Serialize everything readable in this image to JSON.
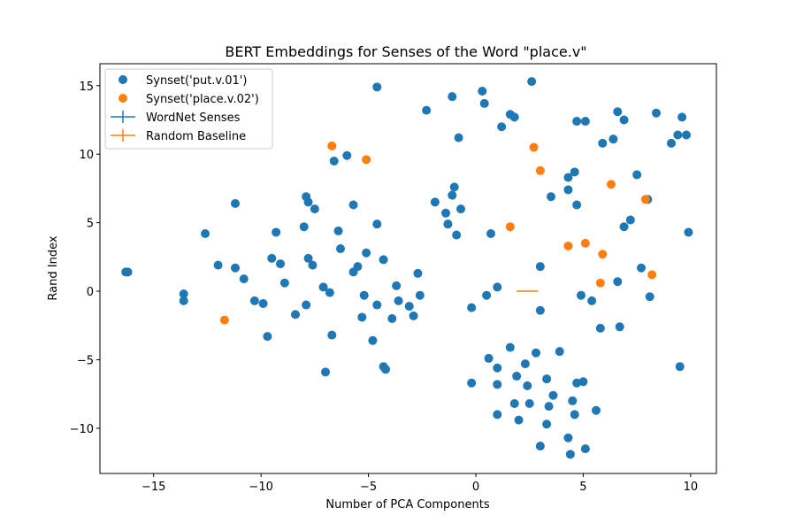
{
  "chart_data": {
    "type": "scatter",
    "title": "BERT Embeddings for Senses of the Word \"place.v\"",
    "xlabel": "Number of PCA Components",
    "ylabel": "Rand Index",
    "xlim": [
      -17.5,
      11.2
    ],
    "ylim": [
      -13.3,
      16.6
    ],
    "xticks": [
      -15,
      -10,
      -5,
      0,
      5,
      10
    ],
    "yticks": [
      -10,
      -5,
      0,
      5,
      10,
      15
    ],
    "xtick_labels": [
      "−15",
      "−10",
      "−5",
      "0",
      "5",
      "10"
    ],
    "ytick_labels": [
      "−10",
      "−5",
      "0",
      "5",
      "10",
      "15"
    ],
    "grid": false,
    "legend_position": "upper-left",
    "colors": {
      "blue": "#1f77b4",
      "orange": "#ff7f0e"
    },
    "series": [
      {
        "name": "Synset('put.v.01')",
        "kind": "scatter",
        "color": "#1f77b4",
        "points": [
          [
            -16.3,
            1.4
          ],
          [
            -16.2,
            1.4
          ],
          [
            -13.6,
            -0.2
          ],
          [
            -13.6,
            -0.7
          ],
          [
            -12.6,
            4.2
          ],
          [
            -12.0,
            1.9
          ],
          [
            -11.2,
            6.4
          ],
          [
            -11.2,
            1.7
          ],
          [
            -10.8,
            0.9
          ],
          [
            -10.3,
            -0.7
          ],
          [
            -9.9,
            -0.9
          ],
          [
            -9.7,
            -3.3
          ],
          [
            -9.5,
            2.4
          ],
          [
            -9.3,
            4.3
          ],
          [
            -9.1,
            2.0
          ],
          [
            -8.9,
            0.6
          ],
          [
            -8.4,
            -1.7
          ],
          [
            -8.0,
            4.7
          ],
          [
            -7.9,
            6.9
          ],
          [
            -7.9,
            -1.0
          ],
          [
            -7.8,
            6.5
          ],
          [
            -7.8,
            2.4
          ],
          [
            -7.6,
            1.9
          ],
          [
            -7.5,
            6.0
          ],
          [
            -7.1,
            0.3
          ],
          [
            -7.0,
            -5.9
          ],
          [
            -6.8,
            -0.1
          ],
          [
            -6.6,
            9.5
          ],
          [
            -6.7,
            -3.2
          ],
          [
            -6.4,
            4.4
          ],
          [
            -6.3,
            3.1
          ],
          [
            -6.0,
            9.9
          ],
          [
            -5.7,
            6.3
          ],
          [
            -5.7,
            1.4
          ],
          [
            -5.5,
            1.8
          ],
          [
            -5.3,
            -1.9
          ],
          [
            -5.2,
            -0.3
          ],
          [
            -5.1,
            2.8
          ],
          [
            -4.8,
            -3.6
          ],
          [
            -4.6,
            -1.0
          ],
          [
            -4.6,
            4.9
          ],
          [
            -4.6,
            14.9
          ],
          [
            -4.3,
            -5.5
          ],
          [
            -4.3,
            2.3
          ],
          [
            -4.2,
            -5.7
          ],
          [
            -3.9,
            -2.0
          ],
          [
            -3.7,
            0.4
          ],
          [
            -3.6,
            -0.7
          ],
          [
            -3.1,
            -1.1
          ],
          [
            -2.9,
            -1.8
          ],
          [
            -2.7,
            1.3
          ],
          [
            -2.6,
            -0.3
          ],
          [
            -2.3,
            13.2
          ],
          [
            -1.9,
            6.5
          ],
          [
            -1.4,
            5.7
          ],
          [
            -1.3,
            4.9
          ],
          [
            -1.1,
            7.0
          ],
          [
            -1.1,
            14.2
          ],
          [
            -1.0,
            7.6
          ],
          [
            -0.9,
            4.1
          ],
          [
            -0.8,
            11.2
          ],
          [
            -0.7,
            6.0
          ],
          [
            -0.2,
            -1.2
          ],
          [
            -0.2,
            -6.7
          ],
          [
            0.3,
            14.6
          ],
          [
            0.4,
            13.7
          ],
          [
            0.5,
            -0.3
          ],
          [
            0.6,
            -4.9
          ],
          [
            0.7,
            4.2
          ],
          [
            1.0,
            0.3
          ],
          [
            1.0,
            -5.6
          ],
          [
            1.0,
            -6.8
          ],
          [
            1.0,
            -9.0
          ],
          [
            1.2,
            12.0
          ],
          [
            1.6,
            -4.1
          ],
          [
            1.6,
            12.9
          ],
          [
            1.8,
            -8.2
          ],
          [
            1.8,
            12.7
          ],
          [
            1.9,
            -6.2
          ],
          [
            2.0,
            -9.4
          ],
          [
            2.3,
            -5.3
          ],
          [
            2.4,
            -6.9
          ],
          [
            2.5,
            -8.2
          ],
          [
            2.6,
            15.3
          ],
          [
            2.8,
            -4.5
          ],
          [
            3.0,
            1.8
          ],
          [
            3.0,
            -1.4
          ],
          [
            3.0,
            -11.3
          ],
          [
            3.3,
            -6.4
          ],
          [
            3.3,
            -9.7
          ],
          [
            3.4,
            -8.4
          ],
          [
            3.5,
            6.9
          ],
          [
            3.6,
            -7.6
          ],
          [
            3.9,
            -4.4
          ],
          [
            4.3,
            -10.7
          ],
          [
            4.3,
            8.3
          ],
          [
            4.3,
            7.4
          ],
          [
            4.4,
            -11.9
          ],
          [
            4.5,
            -8.0
          ],
          [
            4.6,
            8.7
          ],
          [
            4.6,
            -9.0
          ],
          [
            4.7,
            -6.7
          ],
          [
            4.7,
            6.3
          ],
          [
            4.7,
            12.4
          ],
          [
            4.9,
            -0.3
          ],
          [
            5.0,
            -6.6
          ],
          [
            5.1,
            -11.5
          ],
          [
            5.1,
            12.4
          ],
          [
            5.4,
            -0.7
          ],
          [
            5.6,
            -8.7
          ],
          [
            5.8,
            -2.7
          ],
          [
            5.9,
            10.8
          ],
          [
            6.4,
            11.1
          ],
          [
            6.6,
            13.1
          ],
          [
            6.6,
            0.7
          ],
          [
            6.7,
            -2.6
          ],
          [
            6.9,
            12.5
          ],
          [
            6.9,
            4.7
          ],
          [
            7.2,
            5.2
          ],
          [
            7.5,
            8.5
          ],
          [
            7.7,
            1.7
          ],
          [
            8.0,
            6.7
          ],
          [
            8.1,
            -0.4
          ],
          [
            8.4,
            13.0
          ],
          [
            9.1,
            10.8
          ],
          [
            9.4,
            11.4
          ],
          [
            9.5,
            -5.5
          ],
          [
            9.6,
            12.7
          ],
          [
            9.8,
            11.4
          ],
          [
            9.9,
            4.3
          ]
        ]
      },
      {
        "name": "Synset('place.v.02')",
        "kind": "scatter",
        "color": "#ff7f0e",
        "points": [
          [
            -11.7,
            -2.1
          ],
          [
            -6.7,
            10.6
          ],
          [
            -5.1,
            9.6
          ],
          [
            1.6,
            4.7
          ],
          [
            2.7,
            10.5
          ],
          [
            3.0,
            8.8
          ],
          [
            4.3,
            3.3
          ],
          [
            5.1,
            3.5
          ],
          [
            5.8,
            0.6
          ],
          [
            5.9,
            2.7
          ],
          [
            6.3,
            7.8
          ],
          [
            7.9,
            6.7
          ],
          [
            8.2,
            1.2
          ]
        ]
      },
      {
        "name": "WordNet Senses",
        "kind": "errorbar",
        "color": "#1f77b4",
        "points": [
          [
            2.4,
            0.0
          ]
        ]
      },
      {
        "name": "Random Baseline",
        "kind": "errorbar",
        "color": "#ff7f0e",
        "points": [
          [
            2.4,
            0.0
          ]
        ],
        "xerr": 0.5
      }
    ]
  }
}
